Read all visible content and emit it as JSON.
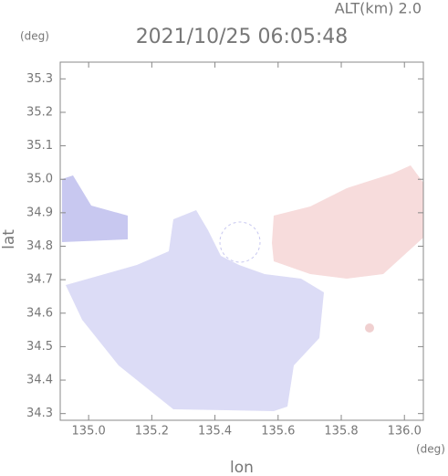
{
  "chart_data": {
    "type": "map",
    "title": "2021/10/25 06:05:48",
    "subtitle": "ALT(km) 2.0",
    "y_unit": "(deg)",
    "x_unit": "(deg)",
    "x_label": "lon",
    "y_label": "lat",
    "xlim": [
      134.91,
      136.06
    ],
    "ylim": [
      34.28,
      35.35
    ],
    "xticks": [
      {
        "value": 135,
        "label": "135.0"
      },
      135.2,
      135.4,
      135.6,
      135.8,
      {
        "value": 136,
        "label": "136.0"
      }
    ],
    "yticks": [
      34.3,
      34.4,
      34.5,
      34.6,
      34.7,
      34.8,
      34.9,
      {
        "value": 35,
        "label": "35.0"
      },
      35.1,
      35.2,
      35.3
    ]
  }
}
